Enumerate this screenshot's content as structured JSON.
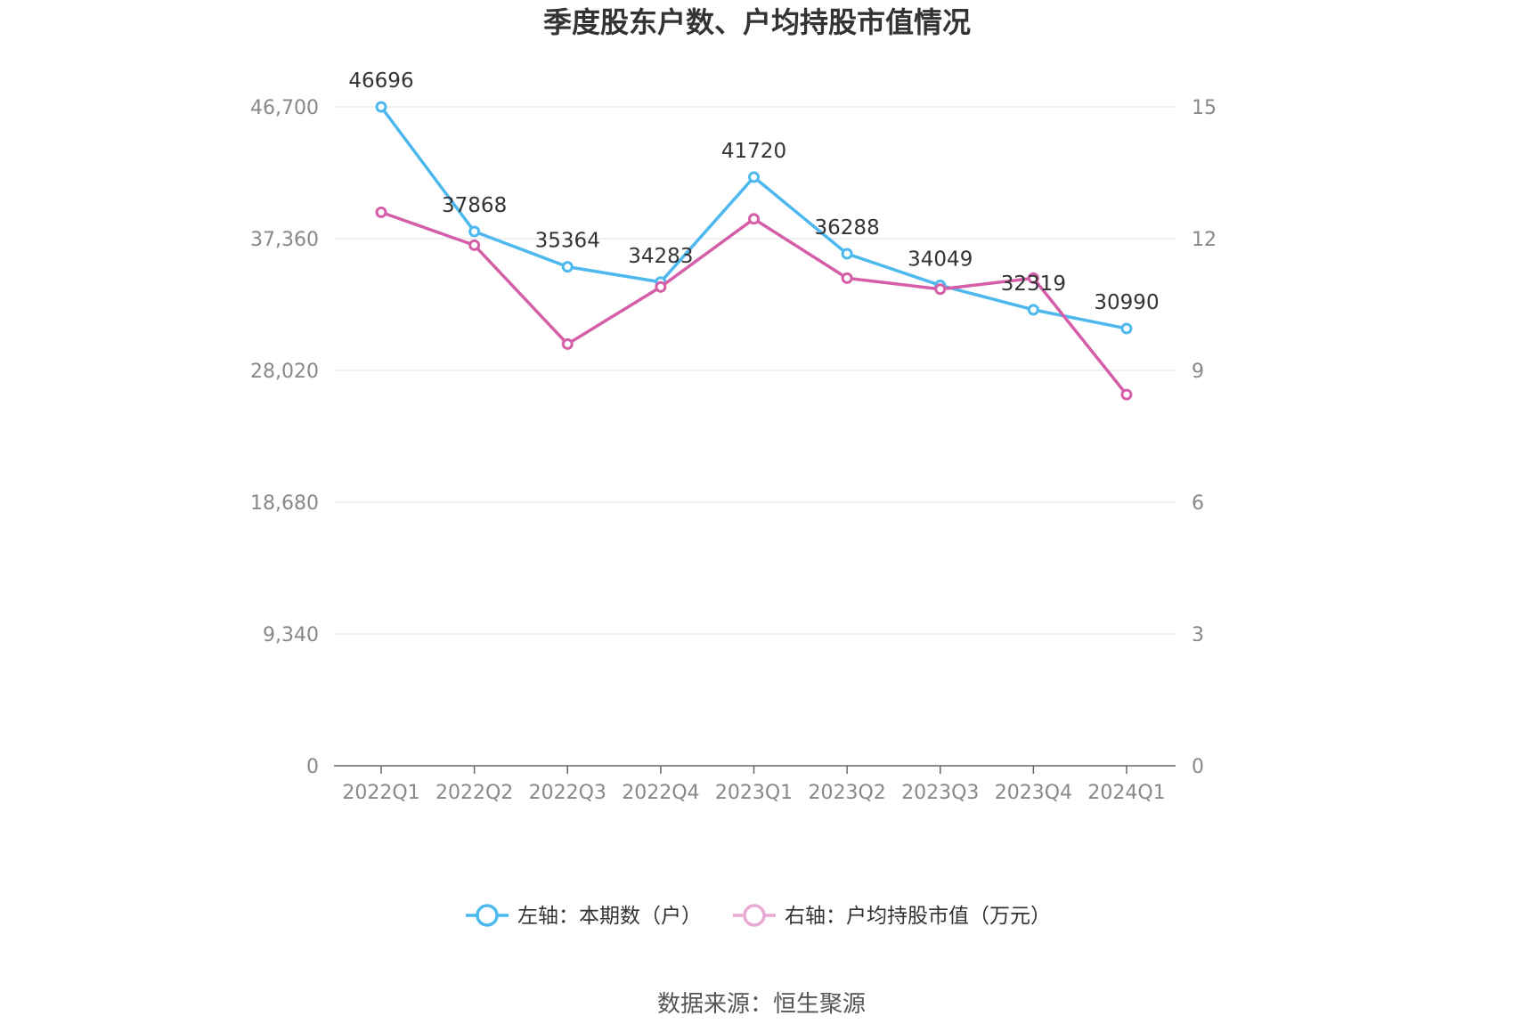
{
  "chart_data": {
    "type": "line",
    "title": "季度股东户数、户均持股市值情况",
    "categories": [
      "2022Q1",
      "2022Q2",
      "2022Q3",
      "2022Q4",
      "2023Q1",
      "2023Q2",
      "2023Q3",
      "2023Q4",
      "2024Q1"
    ],
    "left_axis": {
      "ylim": [
        0,
        46700
      ],
      "ticks": [
        "0",
        "9,340",
        "18,680",
        "28,020",
        "37,360",
        "46,700"
      ],
      "tick_values": [
        0,
        9340,
        18680,
        28020,
        37360,
        46700
      ]
    },
    "right_axis": {
      "ylim": [
        0,
        15
      ],
      "ticks": [
        "0",
        "3",
        "6",
        "9",
        "12",
        "15"
      ],
      "tick_values": [
        0,
        3,
        6,
        9,
        12,
        15
      ]
    },
    "series": [
      {
        "name": "左轴：本期数（户）",
        "axis": "left",
        "color": "#4DB8EE",
        "values": [
          46696,
          37868,
          35364,
          34283,
          41720,
          36288,
          34049,
          32319,
          30990
        ],
        "labels": [
          "46696",
          "37868",
          "35364",
          "34283",
          "41720",
          "36288",
          "34049",
          "32319",
          "30990"
        ]
      },
      {
        "name": "右轴：户均持股市值（万元）",
        "axis": "right",
        "color": "#D45FA8",
        "values": [
          12.6,
          11.85,
          9.6,
          10.9,
          12.45,
          11.1,
          10.85,
          11.1,
          8.45
        ]
      }
    ],
    "grid": true,
    "legend": "bottom-center"
  },
  "source": "数据来源：恒生聚源",
  "icons": {
    "legend_marker": "circle-line-marker"
  }
}
